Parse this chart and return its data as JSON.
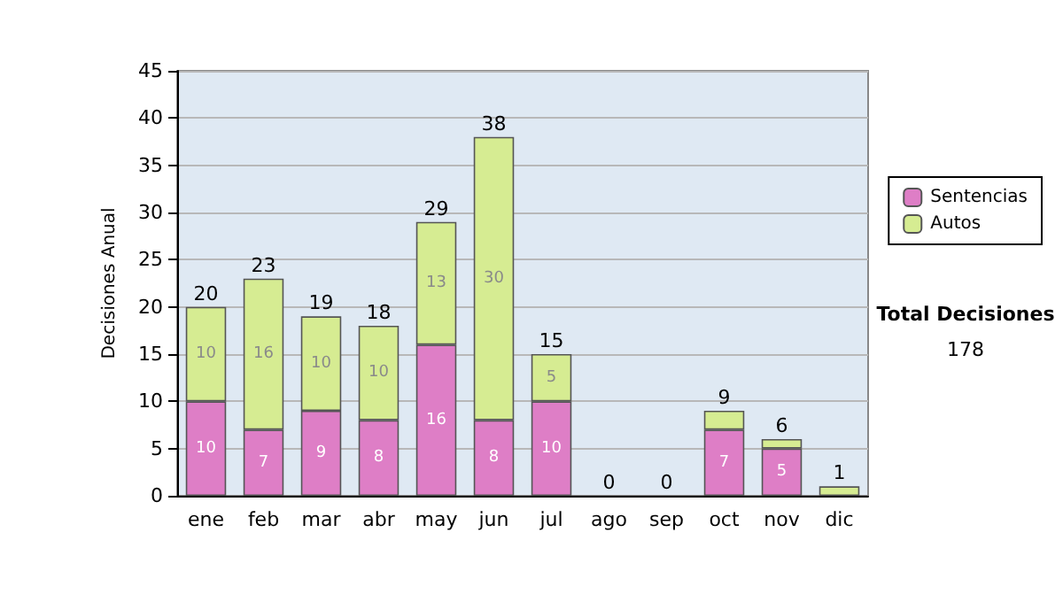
{
  "chart_data": {
    "type": "bar",
    "stacked": true,
    "ylabel": "Decisiones Anual",
    "categories": [
      "ene",
      "feb",
      "mar",
      "abr",
      "may",
      "jun",
      "jul",
      "ago",
      "sep",
      "oct",
      "nov",
      "dic"
    ],
    "series": [
      {
        "name": "Sentencias",
        "color": "#de7ec6",
        "values": [
          10,
          7,
          9,
          8,
          16,
          8,
          10,
          0,
          0,
          7,
          5,
          0
        ],
        "value_labels": [
          "10",
          "7",
          "9",
          "8",
          "16",
          "8",
          "10",
          null,
          null,
          "7",
          "5",
          null
        ]
      },
      {
        "name": "Autos",
        "color": "#d6ec92",
        "values": [
          10,
          16,
          10,
          10,
          13,
          30,
          5,
          0,
          0,
          2,
          1,
          1
        ],
        "value_labels": [
          "10",
          "16",
          "10",
          "10",
          "13",
          "30",
          "5",
          null,
          null,
          null,
          null,
          null
        ]
      }
    ],
    "totals": [
      "20",
      "23",
      "19",
      "18",
      "29",
      "38",
      "15",
      "0",
      "0",
      "9",
      "6",
      "1"
    ],
    "ylim": [
      0,
      45
    ],
    "yticks": [
      0,
      5,
      10,
      15,
      20,
      25,
      30,
      35,
      40,
      45
    ],
    "grid": "y",
    "legend": "right",
    "annotations": [
      "Total Decisiones",
      "178"
    ]
  }
}
